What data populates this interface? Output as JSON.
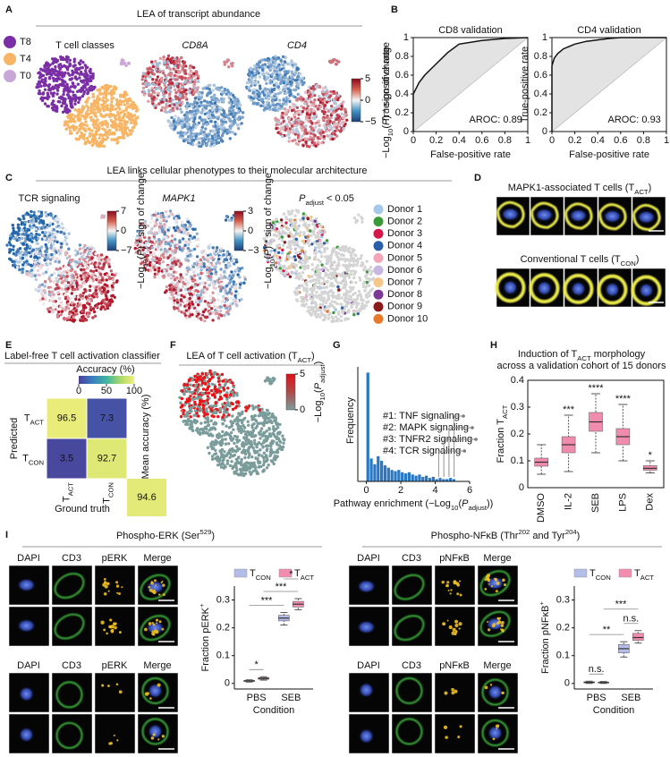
{
  "A": {
    "label": "A",
    "title": "LEA of transcript abundance",
    "legend": [
      {
        "name": "T8",
        "color": "#7b2fa6"
      },
      {
        "name": "T4",
        "color": "#f7b565"
      },
      {
        "name": "T0",
        "color": "#c9a6d8"
      }
    ],
    "map_titles": [
      "T cell classes",
      "CD8A",
      "CD4"
    ],
    "colorbar": {
      "ticks": [
        5,
        0,
        {
          "value": -5,
          "label": "−5"
        }
      ],
      "label": [
        "−Log",
        "10",
        "(",
        "P",
        ") * sign of change"
      ]
    }
  },
  "B": {
    "label": "B",
    "charts": [
      {
        "title": "CD8 validation",
        "xlabel": "False-positive rate",
        "ylabel": "True-positive rate",
        "xlim": [
          0,
          1
        ],
        "ylim": [
          0,
          1
        ],
        "xticks": [
          0,
          0.2,
          0.4,
          0.6,
          0.8,
          1
        ],
        "yticks": [
          0,
          0.2,
          0.4,
          0.6,
          0.8,
          1
        ],
        "auc_label": "AROC: 0.89",
        "curve": {
          "x": [
            0,
            0,
            0.05,
            0.1,
            0.2,
            0.3,
            0.4,
            0.6,
            0.8,
            1
          ],
          "y": [
            0,
            0.4,
            0.52,
            0.6,
            0.72,
            0.84,
            0.93,
            0.97,
            0.99,
            1
          ]
        }
      },
      {
        "title": "CD4 validation",
        "xlabel": "False-positive rate",
        "ylabel": "True-positive rate",
        "xlim": [
          0,
          1
        ],
        "ylim": [
          0,
          1
        ],
        "xticks": [
          0,
          0.2,
          0.4,
          0.6,
          0.8,
          1
        ],
        "yticks": [
          0,
          0.2,
          0.4,
          0.6,
          0.8,
          1
        ],
        "auc_label": "AROC: 0.93",
        "curve": {
          "x": [
            0,
            0,
            0.02,
            0.05,
            0.1,
            0.2,
            0.3,
            0.5,
            0.6,
            1
          ],
          "y": [
            0,
            0.7,
            0.78,
            0.83,
            0.88,
            0.93,
            0.96,
            0.99,
            1,
            1
          ]
        }
      }
    ]
  },
  "C": {
    "label": "C",
    "title": "LEA links cellular phenotypes to their molecular architecture",
    "map_titles": [
      [
        "TCR signaling"
      ],
      [
        "MAPK1"
      ],
      [
        "P",
        "adjust",
        " < 0.05"
      ]
    ],
    "colorbars": [
      {
        "ticks": [
          7,
          0,
          {
            "value": -7,
            "label": "−7"
          }
        ]
      },
      {
        "ticks": [
          3,
          0,
          {
            "value": -3,
            "label": "−3"
          }
        ]
      }
    ],
    "colorbar_label": [
      "−Log",
      "10",
      "(",
      "P",
      ") * sign of change"
    ],
    "donors": [
      {
        "name": "Donor 1",
        "color": "#a6c8e8"
      },
      {
        "name": "Donor 2",
        "color": "#3a9a3a"
      },
      {
        "name": "Donor 3",
        "color": "#d6174b"
      },
      {
        "name": "Donor 4",
        "color": "#2b5ea8"
      },
      {
        "name": "Donor 5",
        "color": "#f2a6b8"
      },
      {
        "name": "Donor 6",
        "color": "#c8b6e2"
      },
      {
        "name": "Donor 7",
        "color": "#f7c68a"
      },
      {
        "name": "Donor 8",
        "color": "#7b3a96"
      },
      {
        "name": "Donor 9",
        "color": "#8b1a1a"
      },
      {
        "name": "Donor 10",
        "color": "#e8792a"
      }
    ]
  },
  "D": {
    "label": "D",
    "groups": [
      [
        "MAPK1-associated T cells (T",
        "ACT",
        ")"
      ],
      [
        "Conventional T cells (T",
        "CON",
        ")"
      ]
    ]
  },
  "E": {
    "label": "E",
    "title": "Label-free T cell activation classifier",
    "colorbar_label": "Accuracy (%)",
    "colorbar_ticks": [
      0,
      50,
      100
    ],
    "y_title": "Predicted",
    "x_title": "Ground truth",
    "classes": [
      [
        "T",
        "ACT"
      ],
      [
        "T",
        "CON"
      ]
    ],
    "matrix": [
      [
        96.5,
        7.3
      ],
      [
        3.5,
        92.7
      ]
    ],
    "mean_label": "Mean accuracy (%)",
    "mean": 94.6
  },
  "F": {
    "label": "F",
    "title": [
      "LEA of T cell activation (T",
      "ACT",
      ")"
    ],
    "colorbar_ticks": [
      5,
      0
    ],
    "colorbar_label": [
      "−Log",
      "10",
      "(",
      "P",
      "adjust",
      ")"
    ]
  },
  "G": {
    "label": "G",
    "ylabel": "Frequency",
    "xlabel": [
      "Pathway enrichment (−Log",
      "10",
      "(",
      "P",
      "adjust",
      "))"
    ],
    "xlim": [
      -0.5,
      6
    ],
    "xticks": [
      0,
      2,
      4,
      6
    ],
    "ylim": [
      0,
      100
    ],
    "bins": [
      0,
      0.2,
      0.4,
      0.6,
      0.8,
      1,
      1.2,
      1.4,
      1.6,
      1.8,
      2,
      2.2,
      2.4,
      2.6,
      2.8,
      3,
      3.2,
      3.4,
      3.6,
      3.8,
      4,
      4.2,
      4.4,
      4.6,
      4.8,
      5,
      5.2
    ],
    "counts": [
      95,
      20,
      15,
      22,
      18,
      14,
      12,
      10,
      9,
      10,
      8,
      7,
      8,
      6,
      5,
      6,
      4,
      5,
      3,
      4,
      2,
      3,
      2,
      2,
      3,
      2
    ],
    "annotations": [
      {
        "text": "#1: TNF signaling",
        "x": 5.1
      },
      {
        "text": "#2: MAPK signaling",
        "x": 4.8
      },
      {
        "text": "#3: TNFR2 signaling",
        "x": 4.5
      },
      {
        "text": "#4: TCR signaling",
        "x": 4.2
      }
    ]
  },
  "H": {
    "label": "H",
    "title": [
      [
        "Induction of T",
        "ACT",
        " morphology"
      ],
      [
        "across a validation cohort of 15 donors"
      ]
    ],
    "ylabel": [
      "Fraction T",
      "ACT"
    ],
    "categories": [
      "DMSO",
      "IL-2",
      "SEB",
      "LPS",
      "Dex"
    ],
    "color": "#f08cad",
    "ylim": [
      0,
      0.4
    ],
    "yticks": [
      0,
      0.1,
      0.2,
      0.3,
      0.4
    ],
    "boxes": {
      "min": [
        0.05,
        0.06,
        0.13,
        0.1,
        0.055
      ],
      "q1": [
        0.08,
        0.13,
        0.21,
        0.16,
        0.065
      ],
      "median": [
        0.095,
        0.16,
        0.245,
        0.19,
        0.072
      ],
      "q3": [
        0.11,
        0.19,
        0.28,
        0.22,
        0.082
      ],
      "max": [
        0.16,
        0.27,
        0.35,
        0.31,
        0.1
      ]
    },
    "significance": [
      null,
      "***",
      "****",
      "****",
      "*"
    ]
  },
  "I": {
    "label": "I",
    "blots": [
      {
        "title": [
          "Phospho-ERK (Ser",
          "529",
          ")"
        ],
        "channels": [
          "DAPI",
          "CD3",
          "pERK",
          "Merge"
        ],
        "chart": {
          "ylabel": [
            "Fraction pERK",
            "+"
          ],
          "xlabel": "Condition",
          "categories": [
            "PBS",
            "SEB"
          ],
          "ylim": [
            -0.02,
            0.35
          ],
          "yticks": [
            0,
            0.1,
            0.2,
            0.3
          ],
          "series": [
            {
              "name": [
                "T",
                "CON"
              ],
              "color": "#b3bde8",
              "min": [
                0.005,
                0.21
              ],
              "q1": [
                0.007,
                0.225
              ],
              "median": [
                0.009,
                0.235
              ],
              "q3": [
                0.011,
                0.245
              ],
              "max": [
                0.013,
                0.255
              ]
            },
            {
              "name": [
                "T",
                "ACT"
              ],
              "color": "#f28cb1",
              "min": [
                0.012,
                0.265
              ],
              "q1": [
                0.015,
                0.275
              ],
              "median": [
                0.018,
                0.285
              ],
              "q3": [
                0.021,
                0.295
              ],
              "max": [
                0.024,
                0.305
              ]
            }
          ],
          "significance": [
            "*",
            "***",
            "***",
            "*"
          ]
        }
      },
      {
        "title": [
          "Phospho-NFκB (Thr",
          "202",
          " and Tyr",
          "204",
          ")"
        ],
        "channels": [
          "DAPI",
          "CD3",
          "pNFκB",
          "Merge"
        ],
        "chart": {
          "ylabel": [
            "Fraction  pNFκB",
            "+"
          ],
          "xlabel": "Condition",
          "categories": [
            "PBS",
            "SEB"
          ],
          "ylim": [
            -0.02,
            0.35
          ],
          "yticks": [
            0,
            0.1,
            0.2,
            0.3
          ],
          "series": [
            {
              "name": [
                "T",
                "CON"
              ],
              "color": "#b3bde8",
              "min": [
                0,
                0.095
              ],
              "q1": [
                0.002,
                0.11
              ],
              "median": [
                0.004,
                0.125
              ],
              "q3": [
                0.006,
                0.14
              ],
              "max": [
                0.008,
                0.15
              ]
            },
            {
              "name": [
                "T",
                "ACT"
              ],
              "color": "#f28cb1",
              "min": [
                0,
                0.145
              ],
              "q1": [
                0.002,
                0.155
              ],
              "median": [
                0.003,
                0.165
              ],
              "q3": [
                0.005,
                0.18
              ],
              "max": [
                0.007,
                0.19
              ]
            }
          ],
          "significance": [
            "n.s.",
            "**",
            "***",
            "n.s."
          ]
        }
      }
    ]
  }
}
